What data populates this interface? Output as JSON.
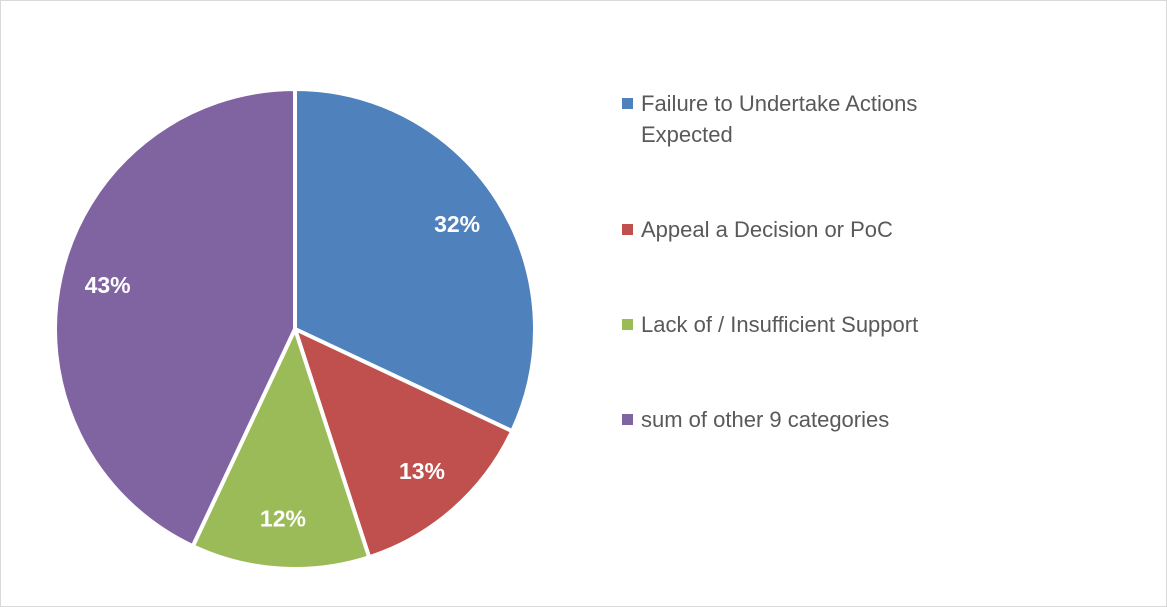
{
  "chart_data": {
    "type": "pie",
    "categories": [
      "Failure to Undertake Actions Expected",
      "Appeal a Decision or PoC",
      "Lack of / Insufficient Support",
      "sum of other 9 categories"
    ],
    "values": [
      32,
      13,
      12,
      43
    ],
    "value_labels": [
      "32%",
      "13%",
      "12%",
      "43%"
    ],
    "colors": [
      "#4f81bd",
      "#c0504d",
      "#9bbb59",
      "#8064a2"
    ],
    "legend": "right"
  }
}
